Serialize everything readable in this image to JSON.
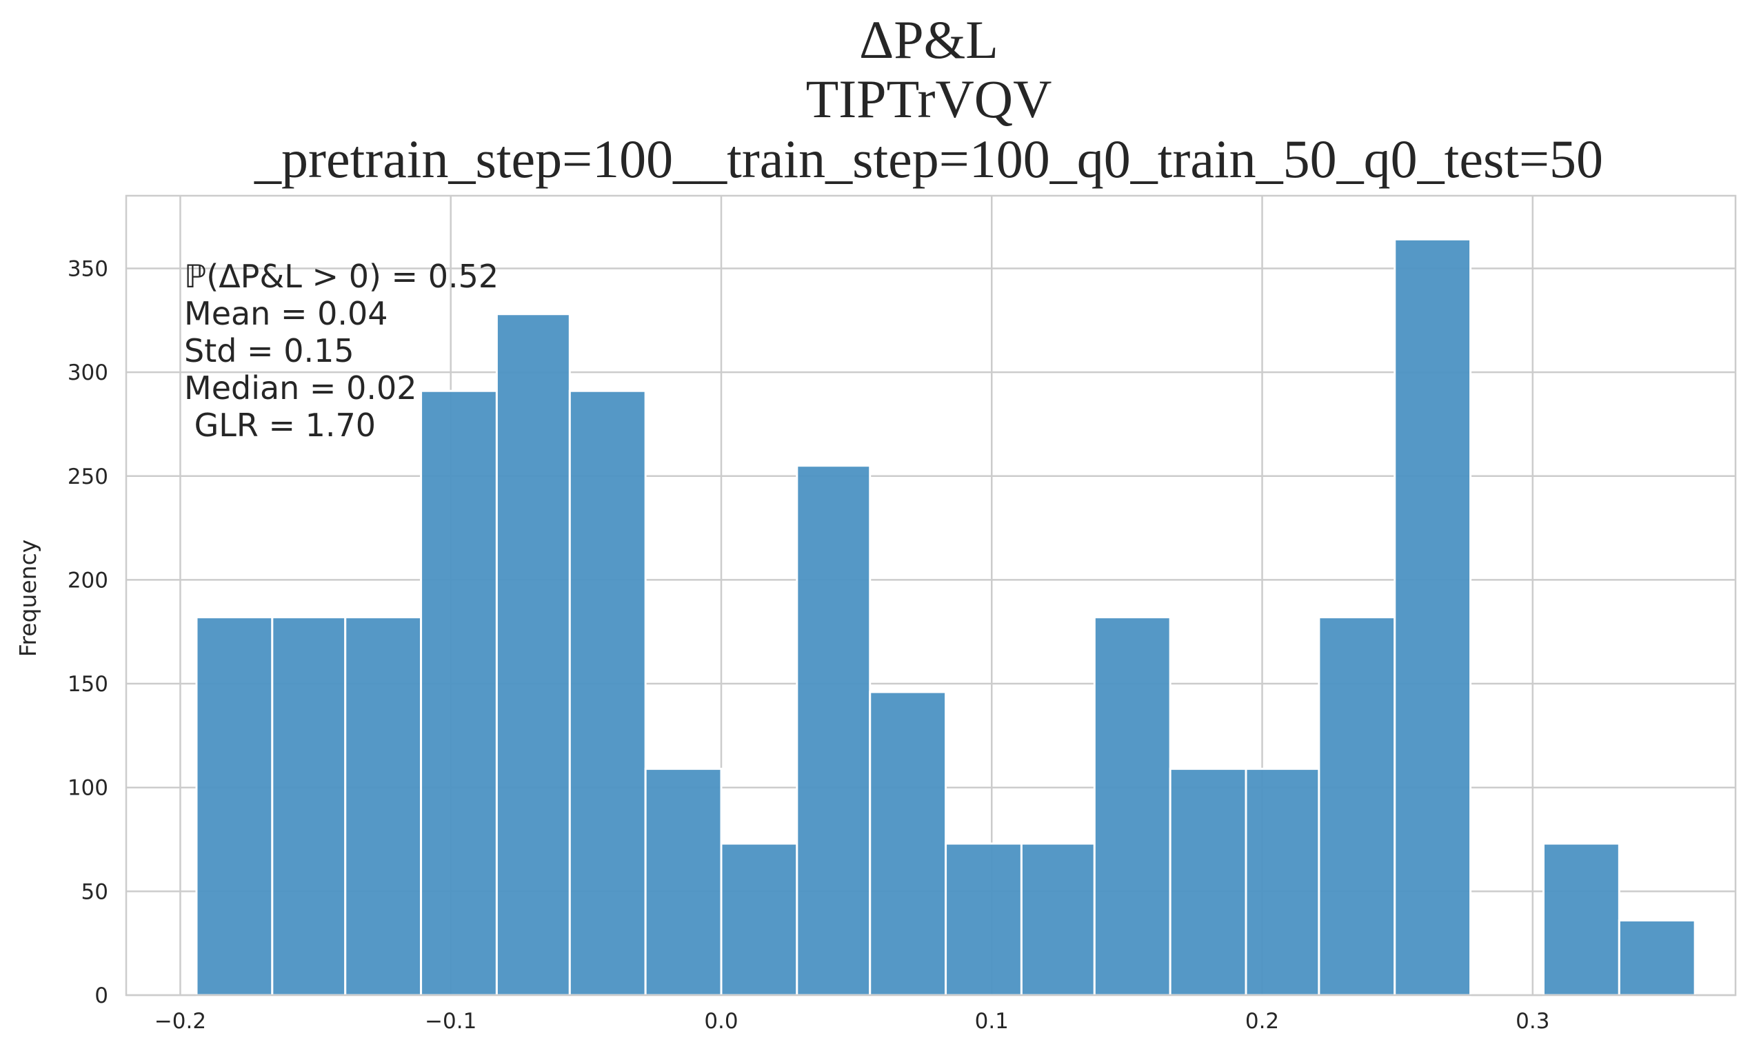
{
  "chart_data": {
    "type": "bar",
    "title_lines": [
      "ΔP&L",
      "TIPTrVQV",
      "_pretrain_step=100__train_step=100_q0_train_50_q0_test=50"
    ],
    "xlabel": "",
    "ylabel": "Frequency",
    "xlim": [
      -0.22,
      0.375
    ],
    "ylim": [
      0,
      385
    ],
    "x_ticks": [
      -0.2,
      -0.1,
      0.0,
      0.1,
      0.2,
      0.3
    ],
    "x_tick_labels": [
      "−0.2",
      "−0.1",
      "0.0",
      "0.1",
      "0.2",
      "0.3"
    ],
    "y_ticks": [
      0,
      50,
      100,
      150,
      200,
      250,
      300,
      350
    ],
    "y_tick_labels": [
      "0",
      "50",
      "100",
      "150",
      "200",
      "250",
      "300",
      "350"
    ],
    "bin_edges": [
      -0.194,
      -0.166,
      -0.139,
      -0.111,
      -0.083,
      -0.056,
      -0.028,
      0.0,
      0.028,
      0.055,
      0.083,
      0.111,
      0.138,
      0.166,
      0.194,
      0.221,
      0.249,
      0.277,
      0.304,
      0.332,
      0.36
    ],
    "values": [
      182,
      182,
      182,
      291,
      328,
      291,
      109,
      73,
      255,
      146,
      73,
      73,
      182,
      109,
      109,
      182,
      364,
      0,
      73,
      36
    ],
    "bar_color": "#4C92C3",
    "grid": true,
    "annotations": [
      "ℙ(ΔP&L > 0) = 0.52",
      "Mean = 0.04",
      "Std = 0.15",
      "Median = 0.02",
      " GLR = 1.70"
    ]
  }
}
